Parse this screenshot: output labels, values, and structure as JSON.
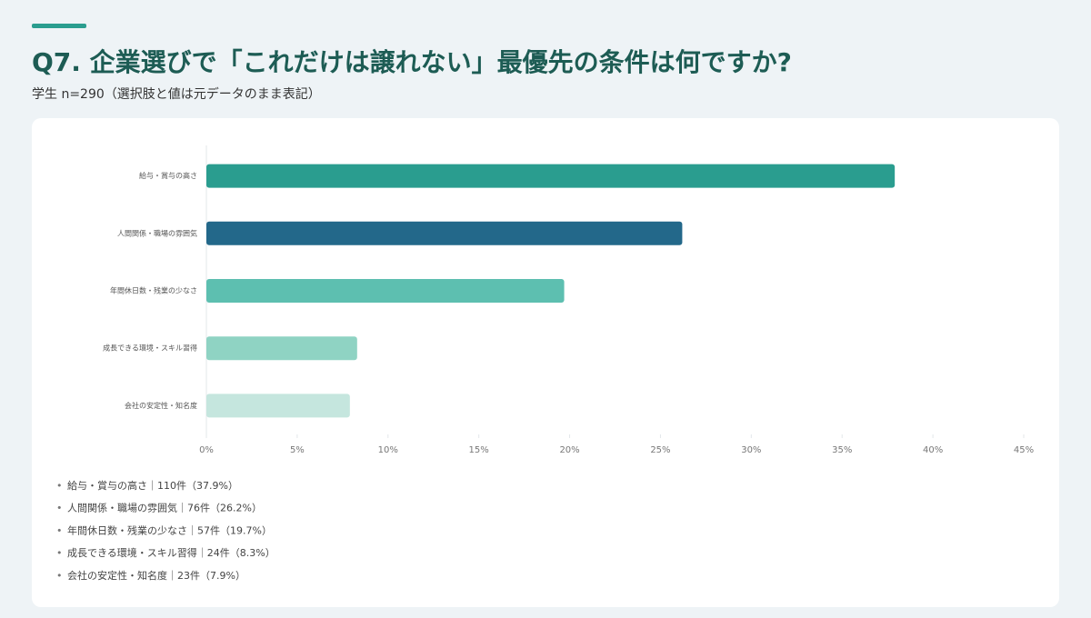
{
  "chart_data": {
    "type": "barh",
    "title": "Q7. 企業選びで「これだけは譲れない」最優先の条件は何ですか?",
    "subtitle": "学生 n=290（選択肢と値は元データのまま表記）",
    "categories": [
      "給与・賞与の高さ",
      "人間関係・職場の雰囲気",
      "年間休日数・残業の少なさ",
      "成長できる環境・スキル習得",
      "会社の安定性・知名度"
    ],
    "values": [
      37.9,
      26.2,
      19.7,
      8.3,
      7.9
    ],
    "colors": [
      "#2a9d8f",
      "#23688a",
      "#5dbfb0",
      "#8fd3c3",
      "#c5e6de"
    ],
    "xlim": [
      0,
      45
    ],
    "xticks": [
      {
        "value": 0,
        "label": "0%"
      },
      {
        "value": 5,
        "label": "5%"
      },
      {
        "value": 10,
        "label": "10%"
      },
      {
        "value": 15,
        "label": "15%"
      },
      {
        "value": 20,
        "label": "20%"
      },
      {
        "value": 25,
        "label": "25%"
      },
      {
        "value": 30,
        "label": "30%"
      },
      {
        "value": 35,
        "label": "35%"
      },
      {
        "value": 40,
        "label": "40%"
      },
      {
        "value": 45,
        "label": "45%"
      }
    ],
    "notes": [
      "給与・賞与の高さ｜110件（37.9%）",
      "人間関係・職場の雰囲気｜76件（26.2%）",
      "年間休日数・残業の少なさ｜57件（19.7%）",
      "成長できる環境・スキル習得｜24件（8.3%）",
      "会社の安定性・知名度｜23件（7.9%）"
    ]
  }
}
